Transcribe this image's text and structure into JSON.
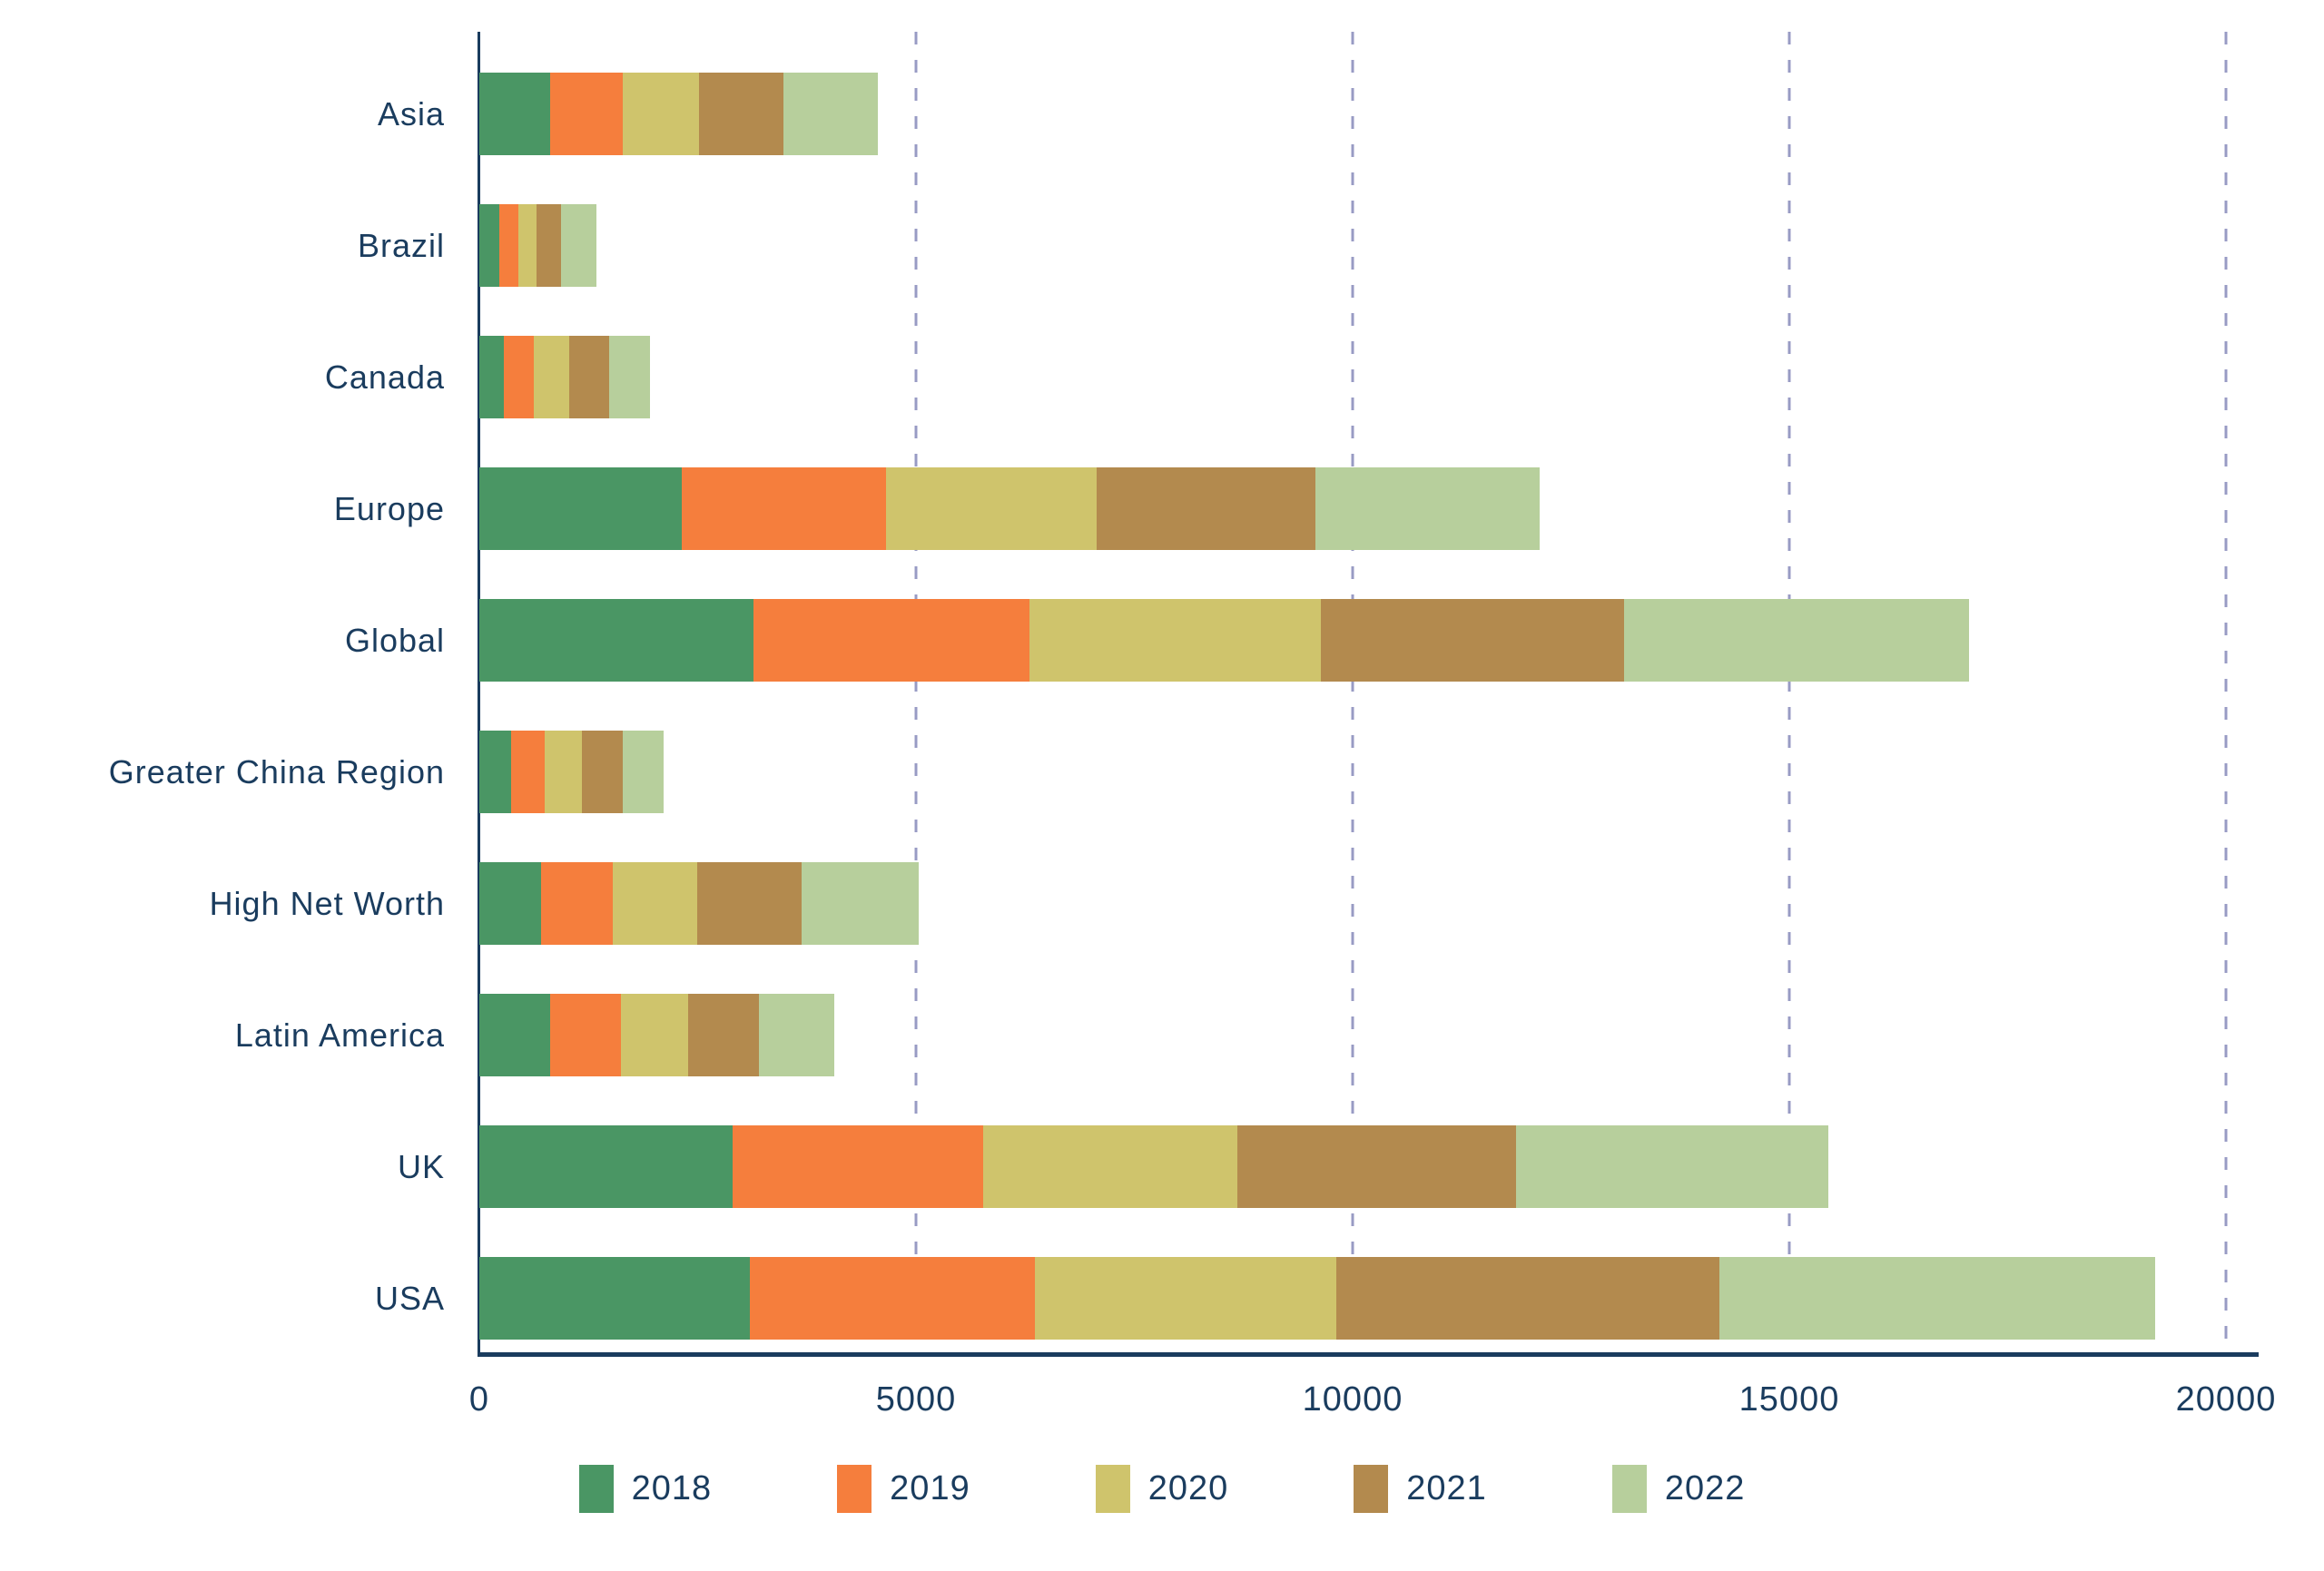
{
  "chart_data": {
    "type": "bar",
    "orientation": "horizontal",
    "stacked": true,
    "title": "",
    "xlabel": "",
    "ylabel": "",
    "xlim": [
      0,
      20000
    ],
    "x_ticks": [
      0,
      5000,
      10000,
      15000,
      20000
    ],
    "x_tick_labels": [
      "0",
      "5000",
      "10000",
      "15000",
      "20000"
    ],
    "grid": "dashed-vertical",
    "legend_position": "bottom",
    "categories": [
      "Asia",
      "Brazil",
      "Canada",
      "Europe",
      "Global",
      "Greater China Region",
      "High Net Worth",
      "Latin America",
      "UK",
      "USA"
    ],
    "series": [
      {
        "name": "2018",
        "color": "#4A9664",
        "values": [
          810,
          230,
          280,
          2320,
          3140,
          360,
          710,
          810,
          2900,
          3100
        ]
      },
      {
        "name": "2019",
        "color": "#F57E3D",
        "values": [
          830,
          220,
          340,
          2340,
          3160,
          390,
          820,
          815,
          2865,
          3265
        ]
      },
      {
        "name": "2020",
        "color": "#CFC46C",
        "values": [
          875,
          210,
          405,
          2410,
          3340,
          425,
          970,
          770,
          2920,
          3450
        ]
      },
      {
        "name": "2021",
        "color": "#B38A4E",
        "values": [
          970,
          280,
          460,
          2500,
          3470,
          465,
          1190,
          805,
          3190,
          4390
        ]
      },
      {
        "name": "2022",
        "color": "#B7CF9C",
        "values": [
          1075,
          405,
          470,
          2570,
          3950,
          470,
          1340,
          860,
          3570,
          4985
        ]
      }
    ]
  },
  "style_colors": {
    "axis": "#1A3C5E",
    "gridline": "#989BC4",
    "label_text": "#1A3C5E",
    "background": "#FFFFFF"
  }
}
